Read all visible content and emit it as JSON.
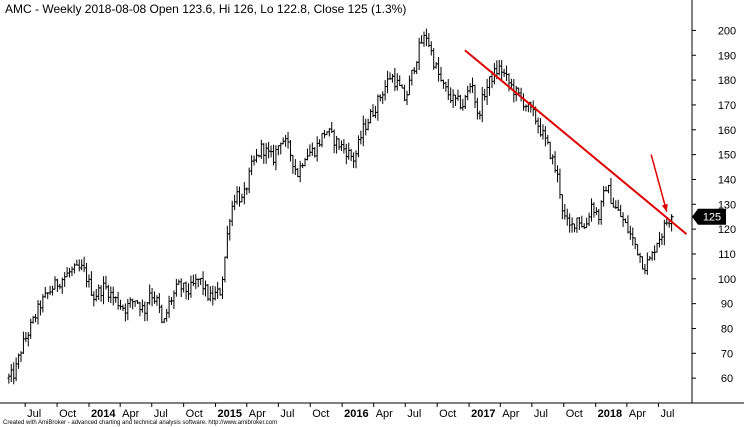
{
  "header": {
    "title": "AMC - Weekly 2018-08-08 Open 123.6, Hi 126, Lo 122.8, Close 125 (1.3%)"
  },
  "footer": {
    "credit": "Created with AmiBroker - advanced charting and technical analysis software. http://www.amibroker.com"
  },
  "chart_data": {
    "type": "line",
    "style": "ohlc-bars",
    "title": "AMC - Weekly 2018-08-08 Open 123.6, Hi 126, Lo 122.8, Close 125 (1.3%)",
    "ylim": [
      50,
      205
    ],
    "y_ticks": [
      60,
      70,
      80,
      90,
      100,
      110,
      120,
      130,
      140,
      150,
      160,
      170,
      180,
      190,
      200
    ],
    "y_axis_side": "right",
    "x_ticks": [
      {
        "label": "Jul",
        "date": "2013-07",
        "bold": false
      },
      {
        "label": "Oct",
        "date": "2013-10",
        "bold": false
      },
      {
        "label": "2014",
        "date": "2014-01",
        "bold": true
      },
      {
        "label": "Apr",
        "date": "2014-04",
        "bold": false
      },
      {
        "label": "Jul",
        "date": "2014-07",
        "bold": false
      },
      {
        "label": "Oct",
        "date": "2014-10",
        "bold": false
      },
      {
        "label": "2015",
        "date": "2015-01",
        "bold": true
      },
      {
        "label": "Apr",
        "date": "2015-04",
        "bold": false
      },
      {
        "label": "Jul",
        "date": "2015-07",
        "bold": false
      },
      {
        "label": "Oct",
        "date": "2015-10",
        "bold": false
      },
      {
        "label": "2016",
        "date": "2016-01",
        "bold": true
      },
      {
        "label": "Apr",
        "date": "2016-04",
        "bold": false
      },
      {
        "label": "Jul",
        "date": "2016-07",
        "bold": false
      },
      {
        "label": "Oct",
        "date": "2016-10",
        "bold": false
      },
      {
        "label": "2017",
        "date": "2017-01",
        "bold": true
      },
      {
        "label": "Apr",
        "date": "2017-04",
        "bold": false
      },
      {
        "label": "Jul",
        "date": "2017-07",
        "bold": false
      },
      {
        "label": "Oct",
        "date": "2017-10",
        "bold": false
      },
      {
        "label": "2018",
        "date": "2018-01",
        "bold": true
      },
      {
        "label": "Apr",
        "date": "2018-04",
        "bold": false
      },
      {
        "label": "Jul",
        "date": "2018-07",
        "bold": false
      }
    ],
    "price_path": [
      {
        "date": "2013-05-15",
        "y": 60
      },
      {
        "date": "2013-06-01",
        "y": 62
      },
      {
        "date": "2013-06-20",
        "y": 72
      },
      {
        "date": "2013-07-15",
        "y": 80
      },
      {
        "date": "2013-08-15",
        "y": 90
      },
      {
        "date": "2013-09-15",
        "y": 96
      },
      {
        "date": "2013-10-15",
        "y": 100
      },
      {
        "date": "2013-11-10",
        "y": 103
      },
      {
        "date": "2013-12-15",
        "y": 104
      },
      {
        "date": "2014-01-15",
        "y": 93
      },
      {
        "date": "2014-02-15",
        "y": 97
      },
      {
        "date": "2014-03-15",
        "y": 92
      },
      {
        "date": "2014-04-15",
        "y": 88
      },
      {
        "date": "2014-05-15",
        "y": 92
      },
      {
        "date": "2014-06-10",
        "y": 87
      },
      {
        "date": "2014-06-25",
        "y": 95
      },
      {
        "date": "2014-07-20",
        "y": 90
      },
      {
        "date": "2014-08-01",
        "y": 80
      },
      {
        "date": "2014-08-20",
        "y": 90
      },
      {
        "date": "2014-09-15",
        "y": 97
      },
      {
        "date": "2014-10-15",
        "y": 95
      },
      {
        "date": "2014-11-15",
        "y": 100
      },
      {
        "date": "2014-12-15",
        "y": 92
      },
      {
        "date": "2015-01-15",
        "y": 95
      },
      {
        "date": "2015-01-25",
        "y": 105
      },
      {
        "date": "2015-02-10",
        "y": 125
      },
      {
        "date": "2015-03-01",
        "y": 135
      },
      {
        "date": "2015-03-20",
        "y": 131
      },
      {
        "date": "2015-04-15",
        "y": 145
      },
      {
        "date": "2015-05-15",
        "y": 153
      },
      {
        "date": "2015-06-15",
        "y": 148
      },
      {
        "date": "2015-07-10",
        "y": 157
      },
      {
        "date": "2015-08-01",
        "y": 152
      },
      {
        "date": "2015-08-25",
        "y": 142
      },
      {
        "date": "2015-09-15",
        "y": 150
      },
      {
        "date": "2015-10-15",
        "y": 152
      },
      {
        "date": "2015-11-15",
        "y": 160
      },
      {
        "date": "2015-12-15",
        "y": 155
      },
      {
        "date": "2016-01-10",
        "y": 152
      },
      {
        "date": "2016-02-05",
        "y": 148
      },
      {
        "date": "2016-03-01",
        "y": 160
      },
      {
        "date": "2016-04-01",
        "y": 168
      },
      {
        "date": "2016-04-25",
        "y": 175
      },
      {
        "date": "2016-05-20",
        "y": 182
      },
      {
        "date": "2016-06-10",
        "y": 178
      },
      {
        "date": "2016-07-01",
        "y": 172
      },
      {
        "date": "2016-07-25",
        "y": 185
      },
      {
        "date": "2016-08-15",
        "y": 195
      },
      {
        "date": "2016-09-01",
        "y": 198
      },
      {
        "date": "2016-09-20",
        "y": 188
      },
      {
        "date": "2016-10-15",
        "y": 178
      },
      {
        "date": "2016-11-15",
        "y": 172
      },
      {
        "date": "2016-12-15",
        "y": 170
      },
      {
        "date": "2017-01-10",
        "y": 180
      },
      {
        "date": "2017-01-25",
        "y": 165
      },
      {
        "date": "2017-02-15",
        "y": 175
      },
      {
        "date": "2017-03-10",
        "y": 182
      },
      {
        "date": "2017-04-01",
        "y": 185
      },
      {
        "date": "2017-04-20",
        "y": 180
      },
      {
        "date": "2017-05-15",
        "y": 175
      },
      {
        "date": "2017-06-15",
        "y": 170
      },
      {
        "date": "2017-07-10",
        "y": 165
      },
      {
        "date": "2017-08-01",
        "y": 158
      },
      {
        "date": "2017-08-25",
        "y": 150
      },
      {
        "date": "2017-09-15",
        "y": 140
      },
      {
        "date": "2017-10-01",
        "y": 125
      },
      {
        "date": "2017-10-20",
        "y": 120
      },
      {
        "date": "2017-11-10",
        "y": 125
      },
      {
        "date": "2017-12-01",
        "y": 120
      },
      {
        "date": "2017-12-20",
        "y": 130
      },
      {
        "date": "2018-01-10",
        "y": 125
      },
      {
        "date": "2018-02-01",
        "y": 138
      },
      {
        "date": "2018-02-20",
        "y": 130
      },
      {
        "date": "2018-03-15",
        "y": 125
      },
      {
        "date": "2018-04-10",
        "y": 118
      },
      {
        "date": "2018-05-01",
        "y": 112
      },
      {
        "date": "2018-05-20",
        "y": 105
      },
      {
        "date": "2018-06-10",
        "y": 108
      },
      {
        "date": "2018-06-25",
        "y": 115
      },
      {
        "date": "2018-07-10",
        "y": 118
      },
      {
        "date": "2018-07-25",
        "y": 123
      },
      {
        "date": "2018-08-08",
        "y": 125
      }
    ],
    "last_bar": {
      "date": "2018-08-08",
      "open": 123.6,
      "high": 126,
      "low": 122.8,
      "close": 125
    },
    "annotations": {
      "trendline": {
        "color": "#e00000",
        "start": {
          "date": "2016-12-20",
          "y": 192
        },
        "end": {
          "date": "2018-09-20",
          "y": 118
        }
      },
      "arrow": {
        "color": "#e00000",
        "start": {
          "date": "2018-06-10",
          "y": 150
        },
        "end": {
          "date": "2018-07-25",
          "y": 127
        }
      },
      "price_tag": {
        "label": "125",
        "value": 125,
        "color": "#000000"
      }
    },
    "grid": false,
    "colors": {
      "bars": "#000000",
      "axis": "#000000",
      "background": "#ffffff"
    }
  }
}
